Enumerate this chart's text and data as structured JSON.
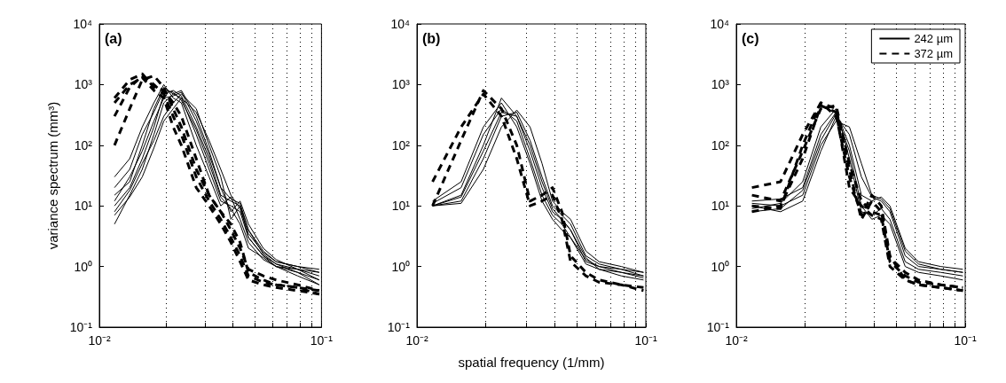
{
  "chart_data": [
    {
      "type": "line",
      "ylabel": "variance spectrum (mm³)",
      "annotations": [
        "(a)"
      ],
      "log": "xy",
      "grid": "x",
      "legend": false,
      "marker": "none",
      "xlim": [
        0.01,
        0.1
      ],
      "xticks": [
        {
          "value": 0.01,
          "label": "10⁻²"
        },
        {
          "value": 0.02,
          "label": null
        },
        {
          "value": 0.03,
          "label": null
        },
        {
          "value": 0.04,
          "label": null
        },
        {
          "value": 0.05,
          "label": null
        },
        {
          "value": 0.06,
          "label": null
        },
        {
          "value": 0.07,
          "label": null
        },
        {
          "value": 0.08,
          "label": null
        },
        {
          "value": 0.09,
          "label": null
        },
        {
          "value": 0.1,
          "label": "10⁻¹"
        }
      ],
      "ylim": [
        0.1,
        10000
      ],
      "yticks": [
        {
          "value": 0.1,
          "label": "10⁻¹"
        },
        {
          "value": 1,
          "label": "10⁰"
        },
        {
          "value": 10,
          "label": "10¹"
        },
        {
          "value": 100,
          "label": "10²"
        },
        {
          "value": 1000,
          "label": "10³"
        },
        {
          "value": 10000,
          "label": "10⁴"
        }
      ],
      "x": [
        0.0117,
        0.0137,
        0.0156,
        0.0176,
        0.0195,
        0.0215,
        0.0234,
        0.0273,
        0.0312,
        0.0352,
        0.0391,
        0.043,
        0.0469,
        0.0547,
        0.0625,
        0.0781,
        0.0977
      ],
      "series": [
        {
          "color": "#000000",
          "line_style": "solid",
          "values": [
            15,
            25,
            100,
            400,
            900,
            700,
            600,
            150,
            40,
            12,
            10,
            8,
            3,
            1.5,
            1.1,
            0.9,
            0.7
          ]
        },
        {
          "color": "#000000",
          "line_style": "solid",
          "values": [
            10,
            20,
            60,
            200,
            700,
            800,
            650,
            200,
            60,
            15,
            12,
            10,
            4,
            1.8,
            1.2,
            1.0,
            0.8
          ]
        },
        {
          "color": "#000000",
          "line_style": "solid",
          "values": [
            5,
            15,
            40,
            150,
            500,
            700,
            800,
            300,
            80,
            20,
            8,
            12,
            5,
            2,
            1.3,
            0.9,
            0.6
          ]
        },
        {
          "color": "#000000",
          "line_style": "solid",
          "values": [
            30,
            60,
            200,
            500,
            1000,
            600,
            500,
            100,
            30,
            10,
            14,
            6,
            2.5,
            1.3,
            1.0,
            0.8,
            0.5
          ]
        },
        {
          "color": "#000000",
          "line_style": "solid",
          "values": [
            8,
            18,
            50,
            120,
            300,
            500,
            700,
            400,
            100,
            30,
            6,
            10,
            3,
            1.5,
            1.0,
            0.7,
            0.5
          ]
        },
        {
          "color": "#000000",
          "line_style": "solid",
          "values": [
            20,
            40,
            150,
            350,
            800,
            750,
            550,
            180,
            50,
            14,
            9,
            5,
            2,
            1.4,
            1.0,
            0.9,
            0.8
          ]
        },
        {
          "color": "#000000",
          "line_style": "solid",
          "values": [
            12,
            30,
            80,
            250,
            600,
            650,
            750,
            250,
            70,
            20,
            13,
            11,
            4,
            1.6,
            1.1,
            0.8,
            0.6
          ]
        },
        {
          "color": "#000000",
          "line_style": "solid",
          "values": [
            7,
            14,
            30,
            90,
            250,
            400,
            600,
            350,
            120,
            40,
            15,
            9,
            3.5,
            1.7,
            1.2,
            1.0,
            0.9
          ]
        },
        {
          "color": "#000000",
          "line_style": "dashed",
          "values": [
            600,
            1200,
            1500,
            900,
            800,
            500,
            300,
            60,
            15,
            8,
            5,
            2.5,
            0.8,
            0.6,
            0.5,
            0.45,
            0.4
          ]
        },
        {
          "color": "#000000",
          "line_style": "dashed",
          "values": [
            300,
            900,
            1400,
            1000,
            700,
            300,
            150,
            30,
            12,
            6,
            3,
            1.5,
            0.7,
            0.55,
            0.5,
            0.45,
            0.35
          ]
        },
        {
          "color": "#000000",
          "line_style": "dashed",
          "values": [
            100,
            400,
            1200,
            1400,
            900,
            400,
            200,
            40,
            15,
            8,
            4,
            2,
            0.9,
            0.7,
            0.6,
            0.5,
            0.4
          ]
        },
        {
          "color": "#000000",
          "line_style": "dashed",
          "values": [
            500,
            1000,
            1300,
            800,
            600,
            200,
            100,
            20,
            10,
            5,
            2.5,
            1.2,
            0.6,
            0.5,
            0.45,
            0.4,
            0.35
          ]
        }
      ]
    },
    {
      "type": "line",
      "xlabel": "spatial frequency (1/mm)",
      "annotations": [
        "(b)"
      ],
      "log": "xy",
      "grid": "x",
      "legend": false,
      "marker": "none",
      "xlim": [
        0.01,
        0.1
      ],
      "xticks": [
        {
          "value": 0.01,
          "label": "10⁻²"
        },
        {
          "value": 0.02,
          "label": null
        },
        {
          "value": 0.03,
          "label": null
        },
        {
          "value": 0.04,
          "label": null
        },
        {
          "value": 0.05,
          "label": null
        },
        {
          "value": 0.06,
          "label": null
        },
        {
          "value": 0.07,
          "label": null
        },
        {
          "value": 0.08,
          "label": null
        },
        {
          "value": 0.09,
          "label": null
        },
        {
          "value": 0.1,
          "label": "10⁻¹"
        }
      ],
      "ylim": [
        0.1,
        10000
      ],
      "yticks": [
        {
          "value": 0.1,
          "label": "10⁻¹"
        },
        {
          "value": 1,
          "label": "10⁰"
        },
        {
          "value": 10,
          "label": "10¹"
        },
        {
          "value": 100,
          "label": "10²"
        },
        {
          "value": 1000,
          "label": "10³"
        },
        {
          "value": 10000,
          "label": "10⁴"
        }
      ],
      "x": [
        0.0117,
        0.0156,
        0.0195,
        0.0234,
        0.0273,
        0.0312,
        0.0352,
        0.0391,
        0.043,
        0.0469,
        0.0547,
        0.0625,
        0.0781,
        0.0977
      ],
      "series": [
        {
          "color": "#000000",
          "line_style": "solid",
          "values": [
            10,
            15,
            100,
            600,
            300,
            80,
            20,
            8,
            6,
            4,
            1.2,
            1.0,
            0.9,
            0.7
          ]
        },
        {
          "color": "#000000",
          "line_style": "solid",
          "values": [
            10,
            12,
            60,
            300,
            350,
            120,
            30,
            10,
            7,
            5,
            1.5,
            1.1,
            0.9,
            0.8
          ]
        },
        {
          "color": "#000000",
          "line_style": "solid",
          "values": [
            11,
            20,
            150,
            400,
            250,
            60,
            15,
            7,
            5,
            3,
            1.3,
            1.0,
            0.8,
            0.7
          ]
        },
        {
          "color": "#000000",
          "line_style": "solid",
          "values": [
            10,
            11,
            40,
            200,
            380,
            200,
            50,
            12,
            8,
            6,
            1.8,
            1.2,
            1.0,
            0.8
          ]
        },
        {
          "color": "#000000",
          "line_style": "solid",
          "values": [
            10,
            14,
            80,
            350,
            300,
            100,
            25,
            9,
            6,
            4,
            1.4,
            0.9,
            0.7,
            0.6
          ]
        },
        {
          "color": "#000000",
          "line_style": "solid",
          "values": [
            12,
            25,
            200,
            500,
            200,
            50,
            12,
            6,
            4,
            3,
            1.1,
            0.9,
            0.8,
            0.65
          ]
        },
        {
          "color": "#000000",
          "line_style": "dashed",
          "values": [
            10,
            120,
            800,
            400,
            100,
            12,
            15,
            20,
            8,
            1.5,
            0.8,
            0.6,
            0.5,
            0.45
          ]
        },
        {
          "color": "#000000",
          "line_style": "dashed",
          "values": [
            25,
            200,
            700,
            300,
            60,
            10,
            12,
            15,
            6,
            1.2,
            0.7,
            0.55,
            0.5,
            0.4
          ]
        }
      ]
    },
    {
      "type": "line",
      "annotations": [
        "(c)"
      ],
      "log": "xy",
      "grid": "x",
      "legend": "top right",
      "marker": "none",
      "xlim": [
        0.01,
        0.1
      ],
      "xticks": [
        {
          "value": 0.01,
          "label": "10⁻²"
        },
        {
          "value": 0.02,
          "label": null
        },
        {
          "value": 0.03,
          "label": null
        },
        {
          "value": 0.04,
          "label": null
        },
        {
          "value": 0.05,
          "label": null
        },
        {
          "value": 0.06,
          "label": null
        },
        {
          "value": 0.07,
          "label": null
        },
        {
          "value": 0.08,
          "label": null
        },
        {
          "value": 0.09,
          "label": null
        },
        {
          "value": 0.1,
          "label": "10⁻¹"
        }
      ],
      "ylim": [
        0.1,
        10000
      ],
      "yticks": [
        {
          "value": 0.1,
          "label": "10⁻¹"
        },
        {
          "value": 1,
          "label": "10⁰"
        },
        {
          "value": 10,
          "label": "10¹"
        },
        {
          "value": 100,
          "label": "10²"
        },
        {
          "value": 1000,
          "label": "10³"
        },
        {
          "value": 10000,
          "label": "10⁴"
        }
      ],
      "x": [
        0.0117,
        0.0156,
        0.0195,
        0.0234,
        0.0273,
        0.0312,
        0.0352,
        0.0391,
        0.043,
        0.0469,
        0.0547,
        0.0625,
        0.0781,
        0.0977
      ],
      "series": [
        {
          "name": "242 µm",
          "color": "#000000",
          "line_style": "solid",
          "values": [
            12,
            13,
            20,
            150,
            350,
            100,
            15,
            12,
            14,
            10,
            2,
            1.2,
            1.0,
            0.9
          ]
        },
        {
          "color": "#000000",
          "line_style": "solid",
          "values": [
            10,
            8,
            12,
            80,
            300,
            150,
            30,
            14,
            12,
            8,
            1.5,
            1.0,
            0.9,
            0.8
          ]
        },
        {
          "color": "#000000",
          "line_style": "solid",
          "values": [
            9,
            11,
            25,
            200,
            400,
            60,
            8,
            7,
            9,
            6,
            1.2,
            0.9,
            0.8,
            0.7
          ]
        },
        {
          "color": "#000000",
          "line_style": "solid",
          "values": [
            11,
            10,
            15,
            100,
            250,
            200,
            50,
            15,
            13,
            9,
            1.8,
            1.1,
            0.9,
            0.8
          ]
        },
        {
          "color": "#000000",
          "line_style": "solid",
          "values": [
            8,
            9,
            18,
            120,
            330,
            80,
            10,
            6,
            7,
            5,
            1.0,
            0.8,
            0.7,
            0.6
          ]
        },
        {
          "name": "372 µm",
          "color": "#000000",
          "line_style": "dashed",
          "values": [
            20,
            25,
            150,
            500,
            300,
            30,
            7,
            15,
            10,
            1.5,
            0.6,
            0.5,
            0.45,
            0.4
          ]
        },
        {
          "color": "#000000",
          "line_style": "dashed",
          "values": [
            15,
            12,
            80,
            400,
            450,
            50,
            12,
            8,
            7,
            1.2,
            0.7,
            0.55,
            0.5,
            0.45
          ]
        },
        {
          "color": "#000000",
          "line_style": "dashed",
          "values": [
            8,
            10,
            60,
            450,
            350,
            20,
            10,
            7,
            6,
            1.0,
            0.6,
            0.5,
            0.45,
            0.4
          ]
        },
        {
          "color": "#000000",
          "line_style": "dashed",
          "values": [
            10,
            9,
            100,
            500,
            400,
            40,
            6,
            12,
            8,
            1.4,
            0.8,
            0.6,
            0.5,
            0.45
          ]
        }
      ]
    }
  ]
}
